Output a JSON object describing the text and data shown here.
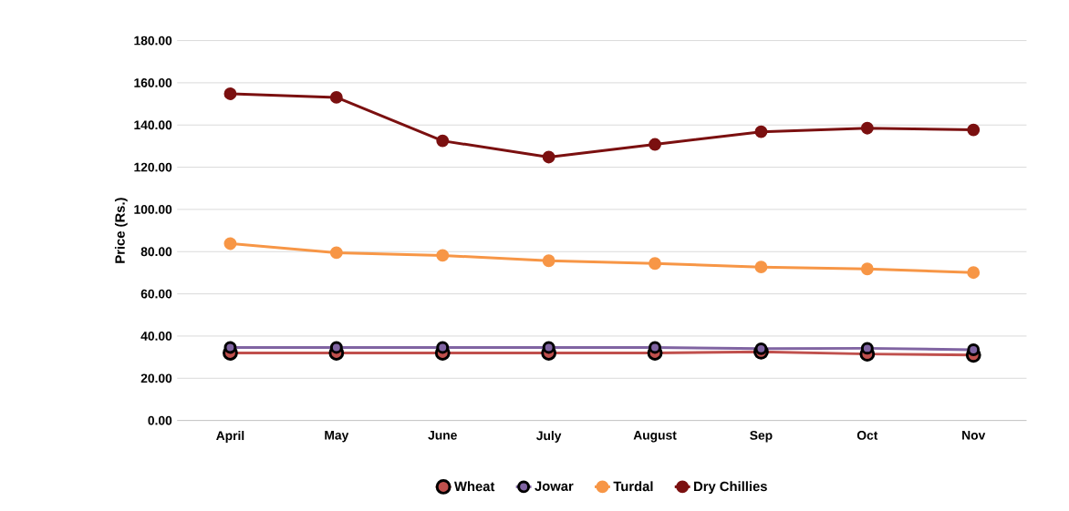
{
  "chart_data": {
    "type": "line",
    "ylabel": "Price (Rs.)",
    "categories": [
      "April",
      "May",
      "June",
      "July",
      "August",
      "Sep",
      "Oct",
      "Nov"
    ],
    "series": [
      {
        "name": "Wheat",
        "color": "#c0504d",
        "values": [
          32,
          32,
          32,
          32,
          32,
          32.5,
          31.5,
          31
        ]
      },
      {
        "name": "Jowar",
        "color": "#8064a2",
        "values": [
          34.6,
          34.6,
          34.6,
          34.6,
          34.6,
          34,
          34.2,
          33.5
        ]
      },
      {
        "name": "Turdal",
        "color": "#f79646",
        "values": [
          83.8,
          79.5,
          78.2,
          75.7,
          74.4,
          72.7,
          71.8,
          70.1
        ]
      },
      {
        "name": "Dry Chillies",
        "color": "#7b1010",
        "values": [
          154.8,
          153.1,
          132.5,
          124.8,
          130.8,
          136.8,
          138.5,
          137.7
        ]
      }
    ],
    "ylim": [
      0,
      180
    ],
    "yticks": [
      {
        "value": 0,
        "label": "0.00"
      },
      {
        "value": 20,
        "label": "20.00"
      },
      {
        "value": 40,
        "label": "40.00"
      },
      {
        "value": 60,
        "label": "60.00"
      },
      {
        "value": 80,
        "label": "80.00"
      },
      {
        "value": 100,
        "label": "100.00"
      },
      {
        "value": 120,
        "label": "120.00"
      },
      {
        "value": 140,
        "label": "140.00"
      },
      {
        "value": 160,
        "label": "160.00"
      },
      {
        "value": 180,
        "label": "180.00"
      }
    ],
    "grid": "y",
    "legend": "bottom",
    "marker": "circle",
    "line_style": "solid"
  }
}
